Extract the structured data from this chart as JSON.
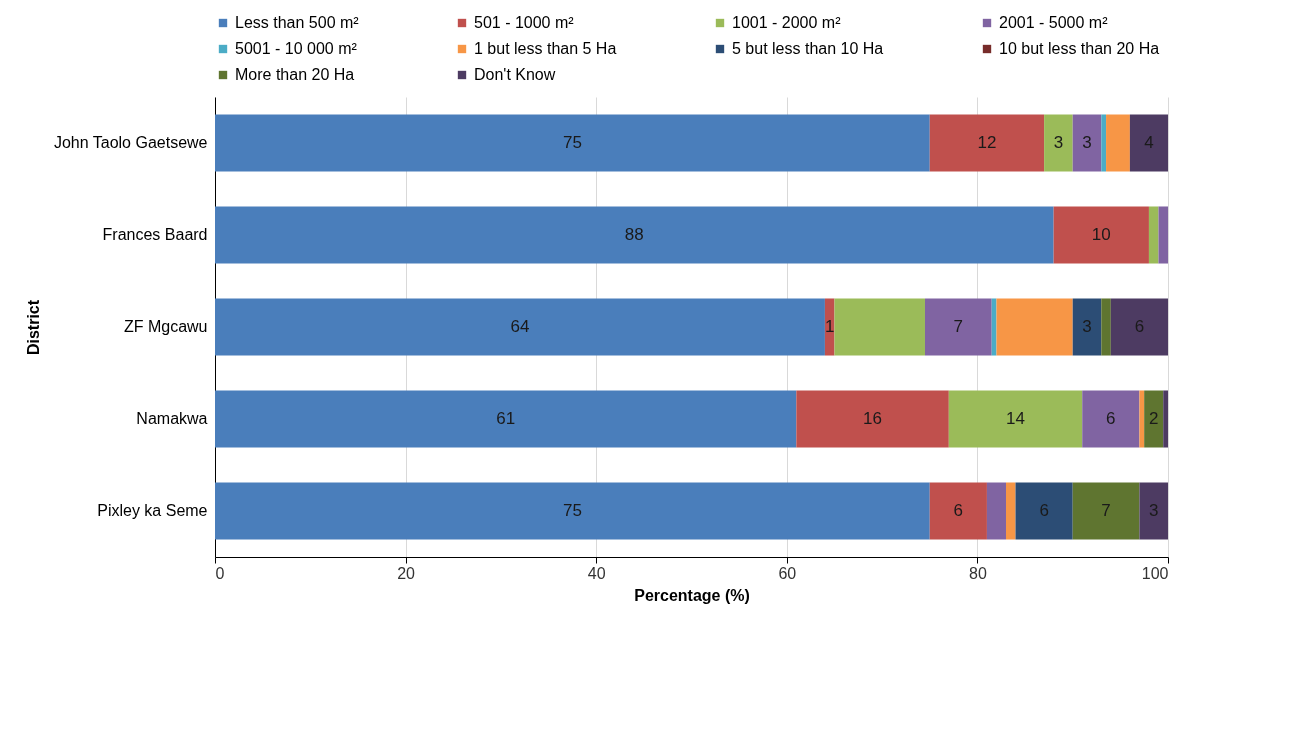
{
  "chart_data": {
    "type": "bar",
    "orientation": "horizontal",
    "stacked": true,
    "xlabel": "Percentage (%)",
    "ylabel": "District",
    "categories": [
      "John Taolo Gaetsewe",
      "Frances Baard",
      "ZF Mgcawu",
      "Namakwa",
      "Pixley ka Seme"
    ],
    "xlim": [
      0,
      100
    ],
    "xticks": [
      0,
      20,
      40,
      60,
      80,
      100
    ],
    "grid": "x",
    "legend": "top",
    "series": [
      {
        "name": "Less than 500 m²",
        "color": "#4a7ebb",
        "values": [
          75,
          88,
          64,
          61,
          75
        ],
        "value_labels": [
          "75",
          "88",
          "64",
          "61",
          "75"
        ]
      },
      {
        "name": "501 - 1000 m²",
        "color": "#c0504d",
        "values": [
          12,
          10,
          1,
          16,
          6
        ],
        "value_labels": [
          "12",
          "10",
          "1",
          "16",
          "6"
        ]
      },
      {
        "name": "1001 - 2000 m²",
        "color": "#9bbb59",
        "values": [
          3,
          1,
          9.5,
          14,
          null
        ],
        "value_labels": [
          "3",
          null,
          null,
          "14",
          null
        ]
      },
      {
        "name": "2001 - 5000 m²",
        "color": "#8064a2",
        "values": [
          3,
          1,
          7,
          6,
          2
        ],
        "value_labels": [
          "3",
          null,
          "7",
          "6",
          null
        ]
      },
      {
        "name": "5001 - 10 000 m²",
        "color": "#4bacc6",
        "values": [
          0.5,
          null,
          0.5,
          null,
          null
        ],
        "value_labels": [
          null,
          null,
          null,
          null,
          null
        ]
      },
      {
        "name": "1 but less than 5 Ha",
        "color": "#f79646",
        "values": [
          2.5,
          null,
          8,
          0.5,
          1
        ],
        "value_labels": [
          null,
          null,
          null,
          null,
          null
        ]
      },
      {
        "name": "5 but less than 10 Ha",
        "color": "#2c4d75",
        "values": [
          null,
          null,
          3,
          null,
          6
        ],
        "value_labels": [
          null,
          null,
          "3",
          null,
          "6"
        ]
      },
      {
        "name": "10 but less than 20 Ha",
        "color": "#772c2a",
        "values": [
          null,
          null,
          null,
          null,
          null
        ],
        "value_labels": [
          null,
          null,
          null,
          null,
          null
        ]
      },
      {
        "name": "More than 20 Ha",
        "color": "#5f7530",
        "values": [
          null,
          null,
          1,
          2,
          7
        ],
        "value_labels": [
          null,
          null,
          null,
          "2",
          "7"
        ]
      },
      {
        "name": "Don't Know",
        "color": "#4d3b62",
        "values": [
          4,
          null,
          6,
          0.5,
          3
        ],
        "value_labels": [
          "4",
          null,
          "6",
          null,
          "3"
        ]
      }
    ]
  }
}
